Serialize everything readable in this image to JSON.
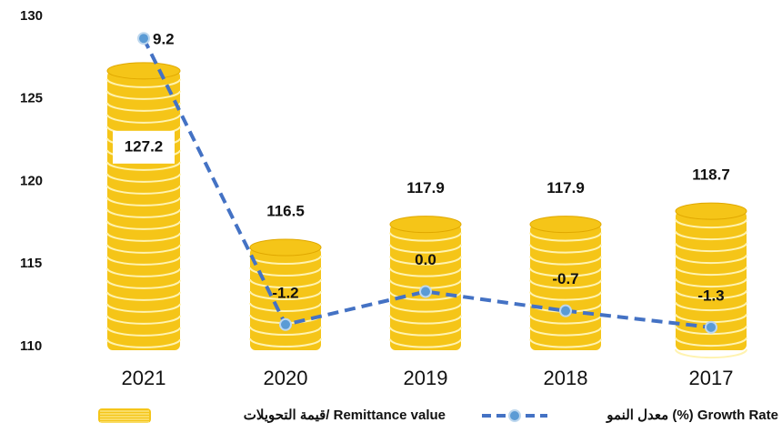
{
  "chart_data": {
    "type": "bar",
    "categories": [
      "2021",
      "2020",
      "2019",
      "2018",
      "2017"
    ],
    "series": [
      {
        "name": "قيمة التحويلات/ Remittance value",
        "color": "#f5c518",
        "values": [
          127.2,
          116.5,
          117.9,
          117.9,
          118.7
        ]
      },
      {
        "name": "معدل النمو (%) Growth Rate",
        "color": "#4472c4",
        "type": "line",
        "axis": "y2",
        "values": [
          9.2,
          -1.2,
          0,
          -0.7,
          -1.3
        ],
        "value_labels": [
          "9.2",
          "-1.2",
          "0.0",
          "-0.7",
          "-1.3"
        ]
      }
    ],
    "ylim": [
      110,
      130
    ],
    "yticks": [
      110,
      115,
      120,
      125,
      130
    ],
    "y2lim": [
      -2,
      10
    ],
    "grid": false
  }
}
